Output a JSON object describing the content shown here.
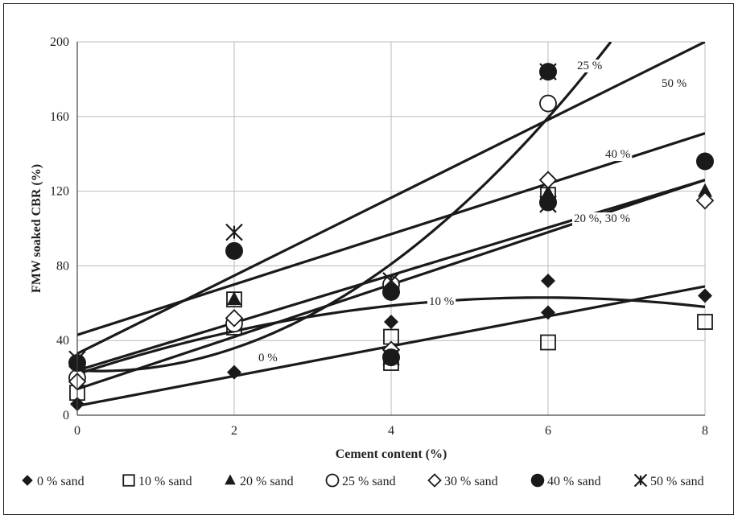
{
  "chart_data": {
    "type": "scatter",
    "xlabel": "Cement content (%)",
    "ylabel": "FMW soaked CBR (%)",
    "xlim": [
      0,
      8
    ],
    "ylim": [
      0,
      200
    ],
    "xticks": [
      0,
      2,
      4,
      6,
      8
    ],
    "yticks": [
      0,
      40,
      80,
      120,
      160,
      200
    ],
    "grid": true,
    "legend_position": "bottom",
    "series": [
      {
        "name": "0 % sand",
        "marker": "diamond-filled",
        "points": [
          [
            0,
            6
          ],
          [
            2,
            23
          ],
          [
            4,
            35
          ],
          [
            4,
            50
          ],
          [
            6,
            55
          ],
          [
            6,
            72
          ],
          [
            8,
            64
          ]
        ]
      },
      {
        "name": "10 % sand",
        "marker": "square-open",
        "points": [
          [
            0,
            12
          ],
          [
            2,
            47
          ],
          [
            2,
            62
          ],
          [
            4,
            28
          ],
          [
            4,
            42
          ],
          [
            6,
            39
          ],
          [
            6,
            118
          ],
          [
            8,
            50
          ]
        ]
      },
      {
        "name": "20 % sand",
        "marker": "triangle-filled",
        "points": [
          [
            0,
            24
          ],
          [
            2,
            62
          ],
          [
            4,
            32
          ],
          [
            6,
            119
          ],
          [
            8,
            120
          ]
        ]
      },
      {
        "name": "25 % sand",
        "marker": "circle-open",
        "points": [
          [
            0,
            20
          ],
          [
            2,
            49
          ],
          [
            4,
            70
          ],
          [
            6,
            167
          ]
        ]
      },
      {
        "name": "30 % sand",
        "marker": "diamond-open",
        "points": [
          [
            0,
            18
          ],
          [
            2,
            52
          ],
          [
            4,
            35
          ],
          [
            6,
            126
          ],
          [
            8,
            115
          ]
        ]
      },
      {
        "name": "40 % sand",
        "marker": "circle-filled",
        "points": [
          [
            0,
            28
          ],
          [
            2,
            88
          ],
          [
            4,
            66
          ],
          [
            4,
            31
          ],
          [
            6,
            114
          ],
          [
            6,
            184
          ],
          [
            8,
            136
          ]
        ]
      },
      {
        "name": "50 % sand",
        "marker": "star",
        "points": [
          [
            0,
            30
          ],
          [
            2,
            98
          ],
          [
            4,
            72
          ],
          [
            4,
            31
          ],
          [
            6,
            113
          ],
          [
            6,
            184
          ]
        ]
      }
    ],
    "trend_lines": [
      {
        "label": "0 %",
        "kind": "linear",
        "points": [
          [
            0,
            5
          ],
          [
            8,
            69
          ]
        ]
      },
      {
        "label": "10 %",
        "kind": "quadratic",
        "points": [
          [
            0,
            22
          ],
          [
            4,
            56
          ],
          [
            6,
            63
          ],
          [
            8,
            58
          ]
        ]
      },
      {
        "label": "20 %, 30 %",
        "kind": "linear",
        "points": [
          [
            0,
            14
          ],
          [
            8,
            126
          ]
        ]
      },
      {
        "label": "25 %",
        "kind": "quadratic",
        "points": [
          [
            0,
            24
          ],
          [
            2,
            34
          ],
          [
            4,
            81
          ],
          [
            6,
            166
          ],
          [
            6.8,
            200
          ]
        ]
      },
      {
        "label": "40 %",
        "kind": "linear",
        "points": [
          [
            0,
            43
          ],
          [
            8,
            151
          ]
        ]
      },
      {
        "label": "50 %",
        "kind": "linear",
        "points": [
          [
            0,
            33
          ],
          [
            8,
            200
          ]
        ]
      },
      {
        "label": "",
        "kind": "linear",
        "points": [
          [
            0,
            24
          ],
          [
            8,
            126
          ]
        ]
      }
    ]
  }
}
